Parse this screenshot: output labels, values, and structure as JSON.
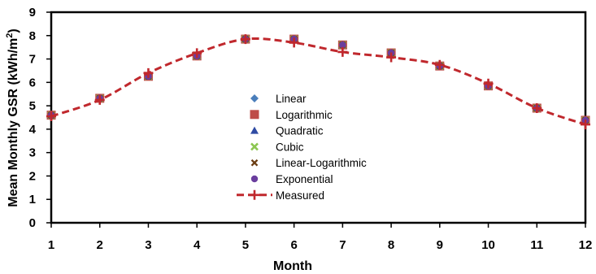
{
  "chart_data": {
    "type": "line",
    "title": "",
    "xlabel": "Month",
    "ylabel": "Mean Monthly GSR (kWh/m²)",
    "ylabel_parts": {
      "main": "Mean Monthly GSR (kWh/m",
      "sup": "2",
      "close": ")"
    },
    "x": [
      1,
      2,
      3,
      4,
      5,
      6,
      7,
      8,
      9,
      10,
      11,
      12
    ],
    "xlim": [
      1,
      12
    ],
    "ylim": [
      0,
      9
    ],
    "yticks": [
      0,
      1,
      2,
      3,
      4,
      5,
      6,
      7,
      8,
      9
    ],
    "grid": false,
    "legend_position": "center",
    "series": [
      {
        "name": "Linear",
        "marker": "diamond",
        "color": "#4A7EBB",
        "values": [
          4.6,
          5.32,
          6.26,
          7.13,
          7.85,
          7.85,
          7.6,
          7.26,
          6.7,
          5.85,
          4.9,
          4.38
        ]
      },
      {
        "name": "Logarithmic",
        "marker": "square",
        "color": "#BE4B48",
        "values": [
          4.6,
          5.32,
          6.26,
          7.13,
          7.85,
          7.85,
          7.6,
          7.26,
          6.7,
          5.85,
          4.9,
          4.38
        ]
      },
      {
        "name": "Quadratic",
        "marker": "triangle",
        "color": "#2F4BA3",
        "values": [
          4.6,
          5.32,
          6.26,
          7.13,
          7.85,
          7.85,
          7.6,
          7.26,
          6.7,
          5.85,
          4.9,
          4.38
        ]
      },
      {
        "name": "Cubic",
        "marker": "x",
        "color": "#8CC651",
        "values": [
          4.6,
          5.32,
          6.26,
          7.13,
          7.85,
          7.85,
          7.6,
          7.26,
          6.7,
          5.85,
          4.9,
          4.38
        ]
      },
      {
        "name": "Linear-Logarithmic",
        "marker": "x-thick",
        "color": "#6B3D13",
        "values": [
          4.6,
          5.32,
          6.26,
          7.13,
          7.85,
          7.85,
          7.6,
          7.26,
          6.7,
          5.85,
          4.9,
          4.38
        ]
      },
      {
        "name": "Exponential",
        "marker": "circle",
        "color": "#6A3E9E",
        "values": [
          4.6,
          5.32,
          6.26,
          7.13,
          7.85,
          7.85,
          7.6,
          7.26,
          6.7,
          5.85,
          4.9,
          4.38
        ]
      },
      {
        "name": "Measured",
        "marker": "plus",
        "line": "dashed",
        "color": "#C0282D",
        "values": [
          4.55,
          5.25,
          6.4,
          7.25,
          7.85,
          7.7,
          7.3,
          7.07,
          6.75,
          5.95,
          4.9,
          4.2
        ]
      }
    ]
  }
}
